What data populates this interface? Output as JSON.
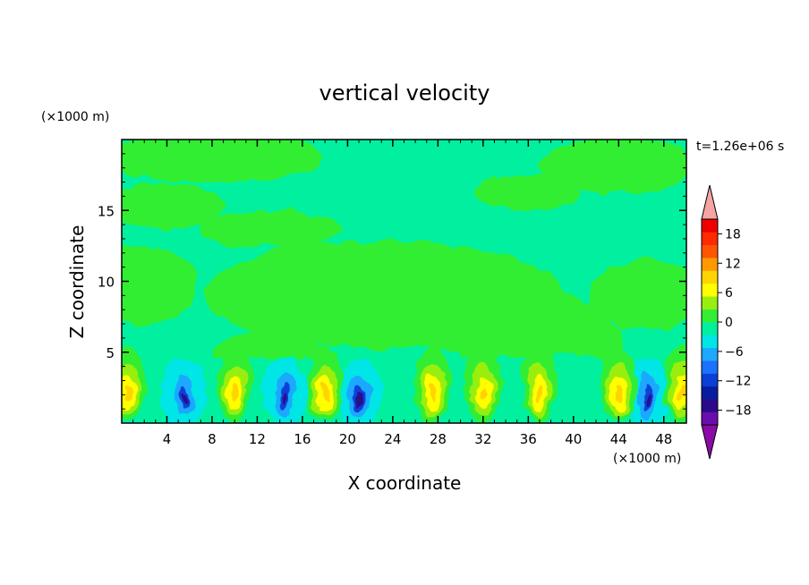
{
  "chart_data": {
    "type": "heatmap",
    "title": "vertical velocity",
    "xlabel": "X coordinate",
    "ylabel": "Z coordinate",
    "x_unit": "(×1000 m)",
    "y_unit": "(×1000 m)",
    "time_label": "t=1.26e+06 s",
    "xlim": [
      0,
      50
    ],
    "ylim": [
      0,
      20
    ],
    "x_ticks": [
      "4",
      "8",
      "12",
      "16",
      "20",
      "24",
      "28",
      "32",
      "36",
      "40",
      "44",
      "48"
    ],
    "y_ticks": [
      "5",
      "10",
      "15"
    ],
    "colorbar": {
      "labels": [
        "18",
        "12",
        "6",
        "0",
        "−6",
        "−12",
        "−18"
      ],
      "levels": [
        -21,
        -18,
        -15,
        -12,
        -9,
        -6,
        -3,
        0,
        3,
        6,
        9,
        12,
        15,
        18,
        21
      ],
      "colors": [
        "#6a0dad",
        "#2b0a8a",
        "#0a1c9e",
        "#0b3fd6",
        "#1a72ff",
        "#1ea8ff",
        "#00e5e5",
        "#00f0a0",
        "#33ee33",
        "#99ee11",
        "#ffff00",
        "#ffd400",
        "#ff9900",
        "#ff5500",
        "#ff2a00",
        "#ee0000"
      ],
      "over_color": "#f5a3a3",
      "under_color": "#8b0aa5"
    },
    "field_description_values": {
      "background_band": "near zero",
      "updraft_cores_x": [
        0.5,
        10,
        18,
        27.5,
        32,
        37,
        44,
        49.5
      ],
      "downdraft_cores_x": [
        5.5,
        14.5,
        21,
        46.5
      ],
      "core_height_range": [
        0,
        5.5
      ]
    }
  }
}
